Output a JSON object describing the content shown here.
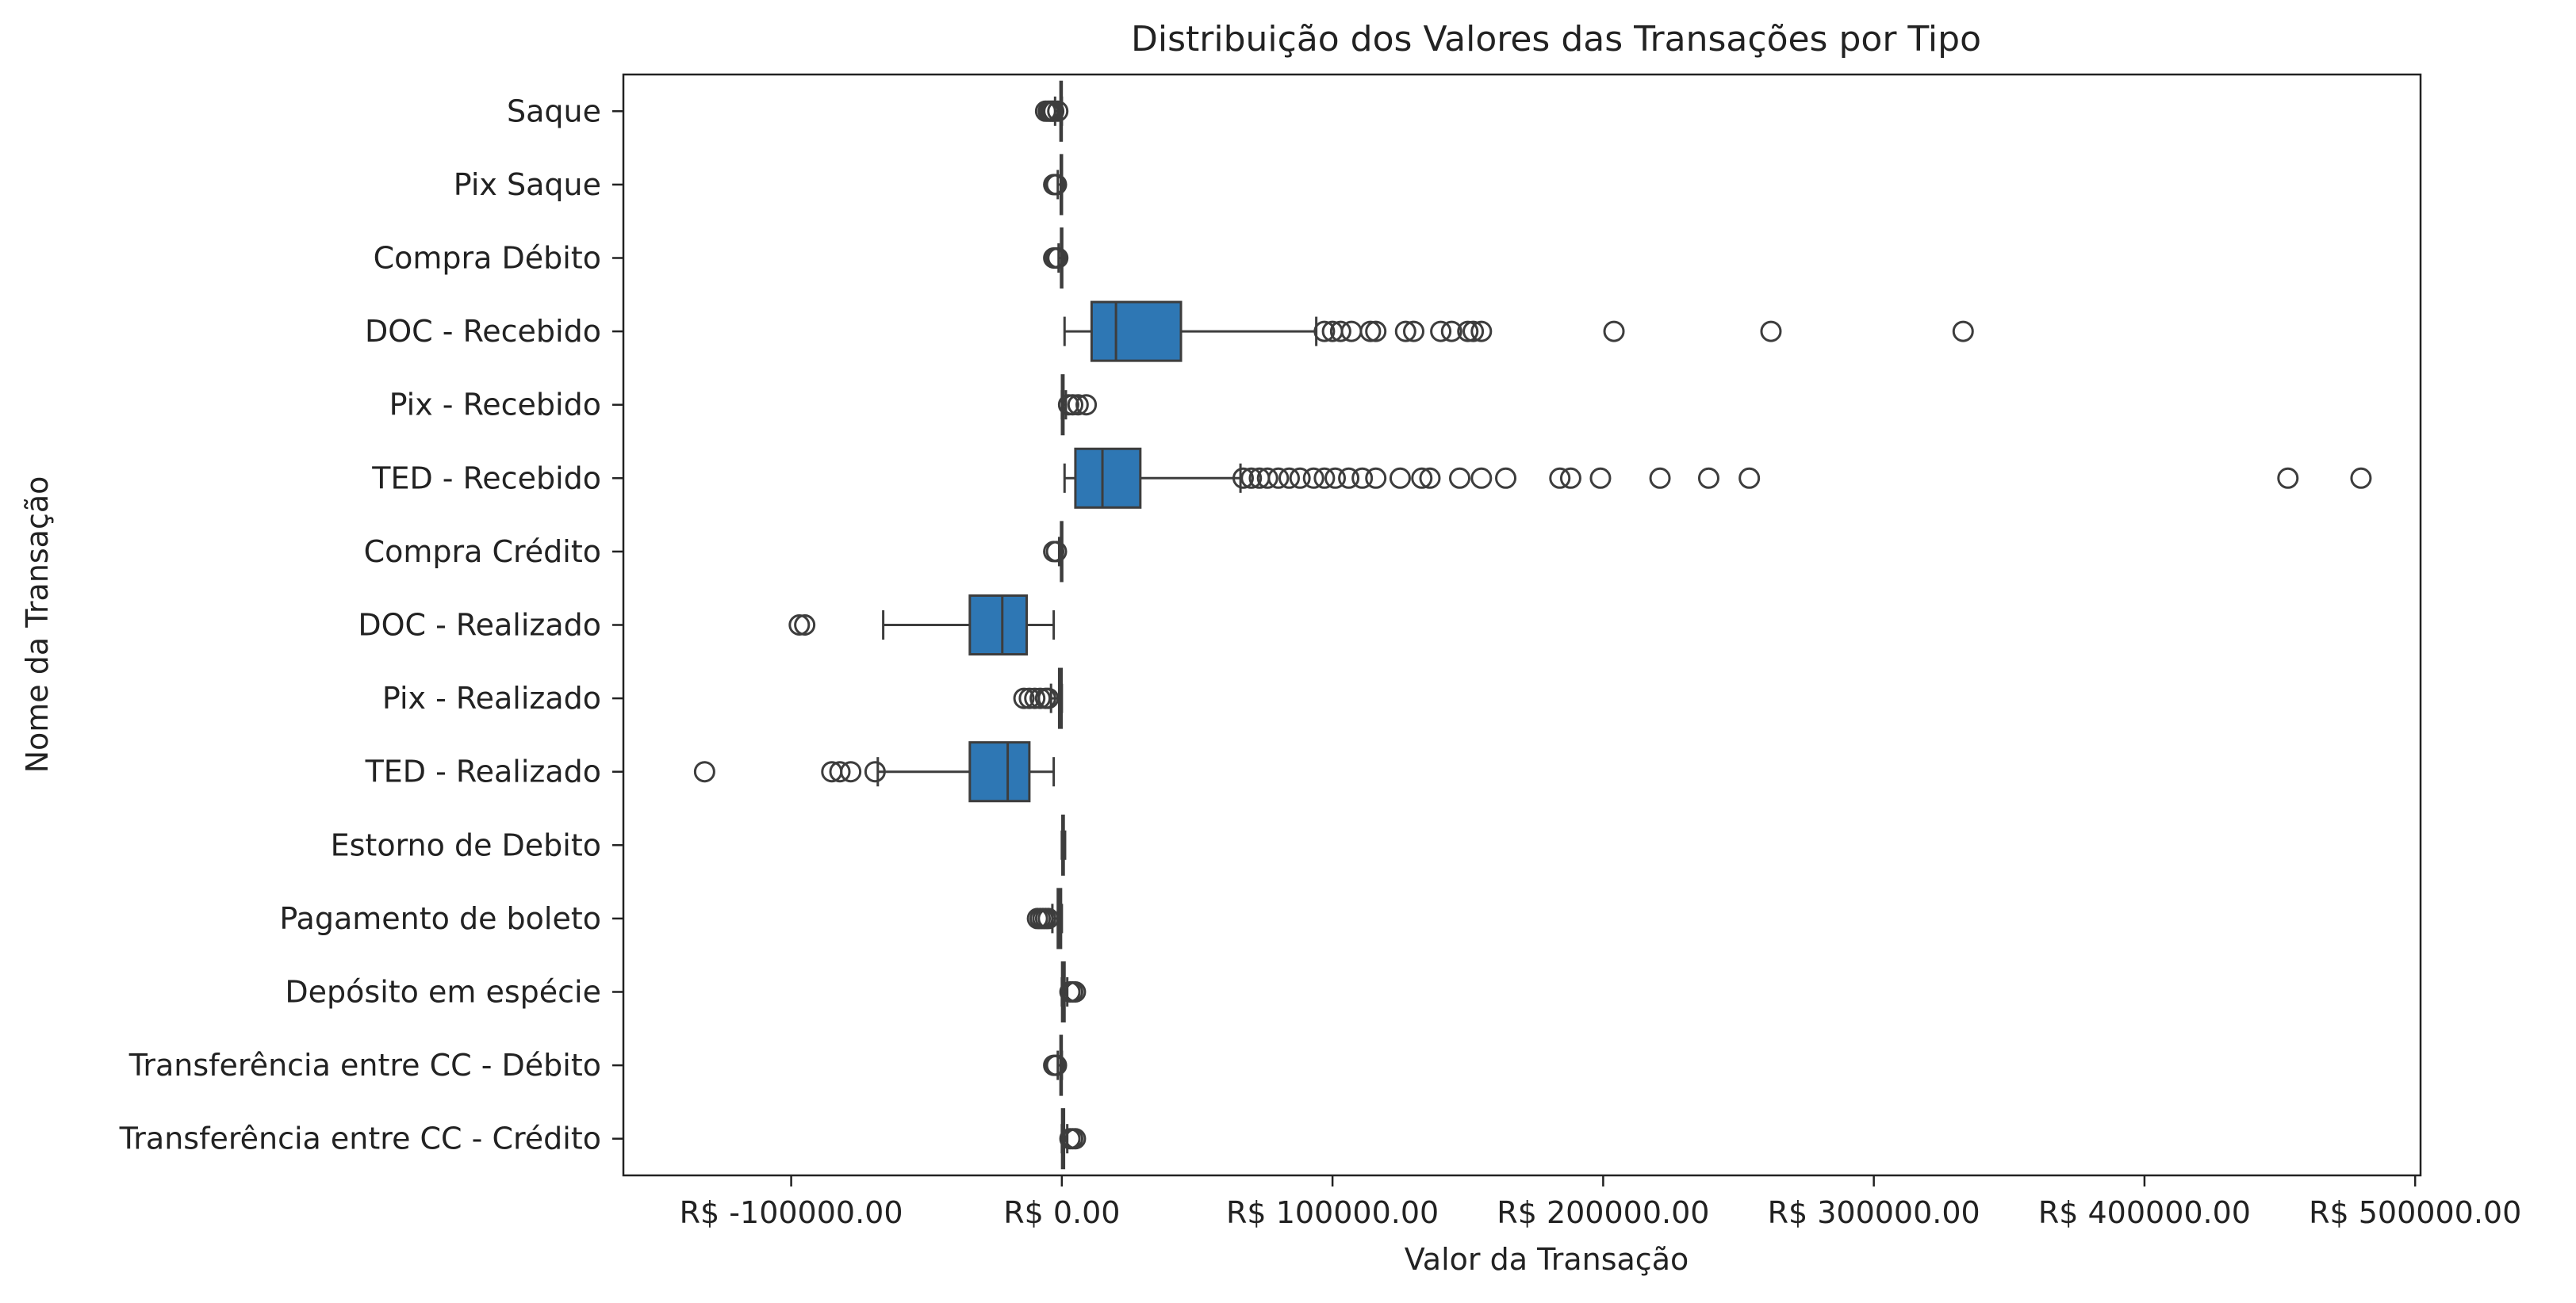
{
  "chart_data": {
    "type": "boxplot",
    "orientation": "horizontal",
    "title": "Distribuição dos Valores das Transações por Tipo",
    "xlabel": "Valor da Transação",
    "ylabel": "Nome da Transação",
    "xlim": [
      -162000,
      502000
    ],
    "xticks": [
      -100000,
      0,
      100000,
      200000,
      300000,
      400000,
      500000
    ],
    "xtick_labels": [
      "R$ -100000.00",
      "R$ 0.00",
      "R$ 100000.00",
      "R$ 200000.00",
      "R$ 300000.00",
      "R$ 400000.00",
      "R$ 500000.00"
    ],
    "grid": false,
    "colors": {
      "box": "#2e77b4",
      "line": "#3d3d3d",
      "axis": "#222222"
    },
    "categories": [
      {
        "name": "Saque",
        "min": -2500,
        "q1": -500,
        "median": -200,
        "q3": -50,
        "max": 0,
        "outliers": [
          -6000,
          -5000,
          -4200,
          -3500,
          -3000,
          -1500
        ]
      },
      {
        "name": "Pix Saque",
        "min": -1500,
        "q1": -400,
        "median": -200,
        "q3": -50,
        "max": 0,
        "outliers": [
          -3000,
          -2500,
          -2000
        ]
      },
      {
        "name": "Compra Débito",
        "min": -1200,
        "q1": -300,
        "median": -100,
        "q3": -20,
        "max": 0,
        "outliers": [
          -3000,
          -2500,
          -2000,
          -1500
        ]
      },
      {
        "name": "DOC - Recebido",
        "min": 1000,
        "q1": 11000,
        "median": 20000,
        "q3": 44000,
        "max": 94000,
        "outliers": [
          97000,
          100000,
          103000,
          107000,
          114000,
          116000,
          127000,
          130000,
          140000,
          144000,
          150000,
          152000,
          155000,
          204000,
          262000,
          333000
        ]
      },
      {
        "name": "Pix - Recebido",
        "min": 0,
        "q1": 50,
        "median": 200,
        "q3": 600,
        "max": 1500,
        "outliers": [
          2500,
          4000,
          6000,
          9000
        ]
      },
      {
        "name": "TED - Recebido",
        "min": 1000,
        "q1": 5000,
        "median": 15000,
        "q3": 29000,
        "max": 66000,
        "outliers": [
          67000,
          70000,
          73000,
          76000,
          80000,
          84000,
          88000,
          93000,
          97000,
          101000,
          106000,
          111000,
          116000,
          125000,
          133000,
          136000,
          147000,
          155000,
          164000,
          184000,
          188000,
          199000,
          221000,
          239000,
          254000,
          453000,
          480000
        ]
      },
      {
        "name": "Compra Crédito",
        "min": -1000,
        "q1": -300,
        "median": -100,
        "q3": -20,
        "max": 0,
        "outliers": [
          -3000,
          -2000
        ]
      },
      {
        "name": "DOC - Realizado",
        "min": -66000,
        "q1": -34000,
        "median": -22000,
        "q3": -13000,
        "max": -3000,
        "outliers": [
          -97000,
          -95000
        ]
      },
      {
        "name": "Pix - Realizado",
        "min": -4000,
        "q1": -1000,
        "median": -400,
        "q3": -100,
        "max": 0,
        "outliers": [
          -14000,
          -12000,
          -10000,
          -8000,
          -6000,
          -5000
        ]
      },
      {
        "name": "TED - Realizado",
        "min": -68000,
        "q1": -34000,
        "median": -20000,
        "q3": -12000,
        "max": -3000,
        "outliers": [
          -132000,
          -85000,
          -82000,
          -78000,
          -69000
        ]
      },
      {
        "name": "Estorno de Debito",
        "min": 0,
        "q1": 200,
        "median": 400,
        "q3": 700,
        "max": 1200,
        "outliers": []
      },
      {
        "name": "Pagamento de boleto",
        "min": -3500,
        "q1": -1500,
        "median": -800,
        "q3": -300,
        "max": 0,
        "outliers": [
          -9000,
          -8000,
          -7000,
          -6000,
          -5000
        ]
      },
      {
        "name": "Depósito em espécie",
        "min": 0,
        "q1": 100,
        "median": 400,
        "q3": 1000,
        "max": 2000,
        "outliers": [
          3000,
          4000,
          5000
        ]
      },
      {
        "name": "Transferência entre CC - Débito",
        "min": -1500,
        "q1": -500,
        "median": -200,
        "q3": -50,
        "max": 0,
        "outliers": [
          -3000,
          -2500,
          -2000
        ]
      },
      {
        "name": "Transferência entre CC - Crédito",
        "min": 0,
        "q1": 100,
        "median": 300,
        "q3": 800,
        "max": 2000,
        "outliers": [
          3000,
          4000,
          5000
        ]
      }
    ]
  }
}
